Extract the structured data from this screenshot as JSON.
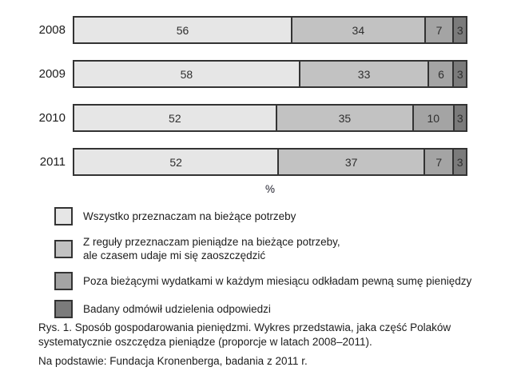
{
  "chart_data": {
    "type": "bar",
    "stacked": true,
    "orientation": "horizontal",
    "categories": [
      "2008",
      "2009",
      "2010",
      "2011"
    ],
    "series": [
      {
        "name": "Wszystko przeznaczam na bieżące potrzeby",
        "color": "#e6e6e6",
        "values": [
          56,
          58,
          52,
          52
        ]
      },
      {
        "name": "Z reguły przeznaczam pieniądze na bieżące potrzeby, ale czasem udaje mi się zaoszczędzić",
        "color": "#c2c2c2",
        "values": [
          34,
          33,
          35,
          37
        ]
      },
      {
        "name": "Poza bieżącymi wydatkami w każdym miesiącu odkładam pewną sumę pieniędzy",
        "color": "#a4a4a4",
        "values": [
          7,
          6,
          10,
          7
        ]
      },
      {
        "name": "Badany odmówił udzielenia odpowiedzi",
        "color": "#7b7b7b",
        "values": [
          3,
          3,
          3,
          3
        ]
      }
    ],
    "xlabel": "%",
    "xlim": [
      0,
      100
    ],
    "value_labels_shown": true,
    "legend_position": "below",
    "grid": false
  },
  "axis": {
    "unit_label": "%"
  },
  "legend": {
    "items": [
      {
        "label": "Wszystko przeznaczam na bieżące potrzeby",
        "color": "#e6e6e6"
      },
      {
        "label": "Z reguły przeznaczam pieniądze na bieżące potrzeby,\nale czasem udaje mi się zaoszczędzić",
        "color": "#c2c2c2"
      },
      {
        "label": "Poza bieżącymi wydatkami w każdym miesiącu odkładam pewną sumę pieniędzy",
        "color": "#a4a4a4"
      },
      {
        "label": "Badany odmówił udzielenia odpowiedzi",
        "color": "#7b7b7b"
      }
    ]
  },
  "caption": {
    "line1": "Rys. 1. Sposób gospodarowania pieniędzmi. Wykres przedstawia, jaka część Polaków\nsystematycznie oszczędza pieniądze (proporcje w latach 2008–2011).",
    "line2": "Na podstawie: Fundacja Kronenberga, badania z 2011 r."
  },
  "colors": {
    "border": "#333333",
    "text": "#1c1c1c",
    "background": "#ffffff"
  }
}
